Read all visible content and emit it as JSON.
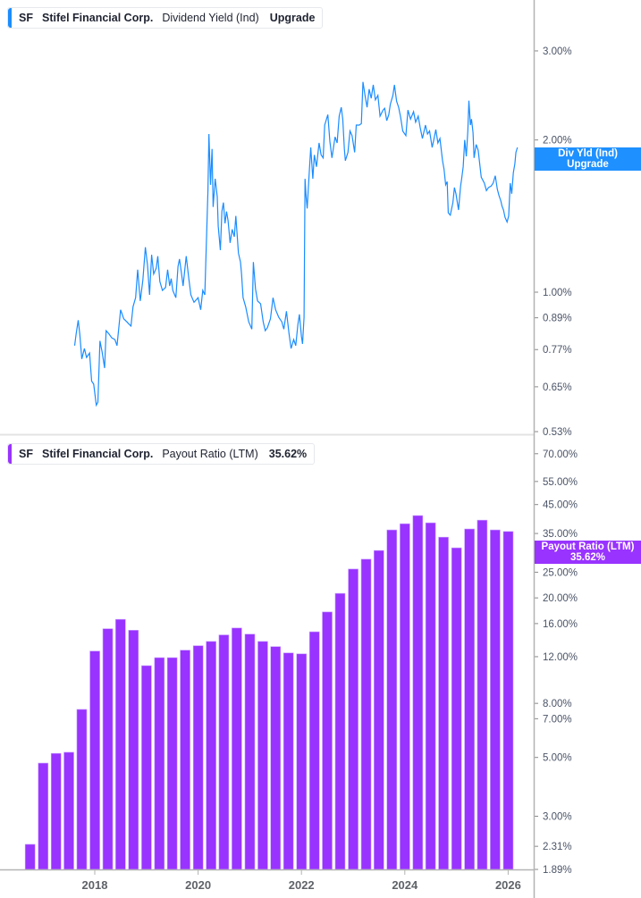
{
  "colors": {
    "yield_line": "#1a8cff",
    "payout_bar": "#9933ff",
    "axis": "#b3b3b3",
    "tick_text": "#4a5366"
  },
  "top_legend": {
    "ticker": "SF",
    "company": "Stifel Financial Corp.",
    "metric": "Dividend Yield (Ind)",
    "value": "Upgrade"
  },
  "top_tag": {
    "line1": "Div Yld (Ind)",
    "line2": "Upgrade"
  },
  "bottom_legend": {
    "ticker": "SF",
    "company": "Stifel Financial Corp.",
    "metric": "Payout Ratio (LTM)",
    "value": "35.62%"
  },
  "bottom_tag": {
    "line1": "Payout Ratio (LTM)",
    "line2": "35.62%"
  },
  "chart_data": [
    {
      "type": "line",
      "series_label": "Dividend Yield (Ind)",
      "yscale": "log",
      "ylim": [
        0.53,
        3.3
      ],
      "yticks": [
        "3.00%",
        "2.00%",
        "1.00%",
        "0.89%",
        "0.77%",
        "0.65%",
        "0.53%"
      ],
      "ytick_values": [
        3.0,
        2.0,
        1.0,
        0.89,
        0.77,
        0.65,
        0.53
      ],
      "x_unit": "year",
      "points": [
        [
          2017.61,
          0.784
        ],
        [
          2017.64,
          0.828
        ],
        [
          2017.68,
          0.88
        ],
        [
          2017.71,
          0.828
        ],
        [
          2017.75,
          0.738
        ],
        [
          2017.8,
          0.774
        ],
        [
          2017.84,
          0.743
        ],
        [
          2017.9,
          0.758
        ],
        [
          2017.94,
          0.667
        ],
        [
          2017.98,
          0.658
        ],
        [
          2018.03,
          0.598
        ],
        [
          2018.06,
          0.606
        ],
        [
          2018.1,
          0.801
        ],
        [
          2018.14,
          0.764
        ],
        [
          2018.19,
          0.708
        ],
        [
          2018.22,
          0.839
        ],
        [
          2018.27,
          0.828
        ],
        [
          2018.33,
          0.812
        ],
        [
          2018.39,
          0.806
        ],
        [
          2018.43,
          0.784
        ],
        [
          2018.5,
          0.923
        ],
        [
          2018.56,
          0.886
        ],
        [
          2018.62,
          0.874
        ],
        [
          2018.67,
          0.863
        ],
        [
          2018.7,
          0.857
        ],
        [
          2018.74,
          0.936
        ],
        [
          2018.79,
          0.975
        ],
        [
          2018.83,
          1.108
        ],
        [
          2018.88,
          0.961
        ],
        [
          2018.93,
          1.057
        ],
        [
          2018.98,
          1.227
        ],
        [
          2019.02,
          1.131
        ],
        [
          2019.06,
          0.988
        ],
        [
          2019.1,
          1.186
        ],
        [
          2019.14,
          1.086
        ],
        [
          2019.19,
          1.116
        ],
        [
          2019.22,
          1.178
        ],
        [
          2019.26,
          1.05
        ],
        [
          2019.31,
          1.008
        ],
        [
          2019.37,
          1.022
        ],
        [
          2019.41,
          1.108
        ],
        [
          2019.45,
          1.029
        ],
        [
          2019.48,
          1.064
        ],
        [
          2019.51,
          1.008
        ],
        [
          2019.57,
          0.975
        ],
        [
          2019.61,
          1.124
        ],
        [
          2019.64,
          1.163
        ],
        [
          2019.68,
          1.086
        ],
        [
          2019.71,
          1.029
        ],
        [
          2019.77,
          1.178
        ],
        [
          2019.82,
          1.064
        ],
        [
          2019.86,
          0.988
        ],
        [
          2019.92,
          0.955
        ],
        [
          2020.0,
          0.975
        ],
        [
          2020.05,
          0.923
        ],
        [
          2020.09,
          1.008
        ],
        [
          2020.13,
          0.988
        ],
        [
          2020.16,
          1.244
        ],
        [
          2020.19,
          1.588
        ],
        [
          2020.21,
          2.055
        ],
        [
          2020.24,
          1.631
        ],
        [
          2020.27,
          1.92
        ],
        [
          2020.29,
          1.474
        ],
        [
          2020.33,
          1.676
        ],
        [
          2020.37,
          1.545
        ],
        [
          2020.39,
          1.35
        ],
        [
          2020.43,
          1.211
        ],
        [
          2020.46,
          1.444
        ],
        [
          2020.49,
          1.504
        ],
        [
          2020.52,
          1.368
        ],
        [
          2020.55,
          1.444
        ],
        [
          2020.58,
          1.386
        ],
        [
          2020.62,
          1.252
        ],
        [
          2020.66,
          1.331
        ],
        [
          2020.7,
          1.287
        ],
        [
          2020.73,
          1.415
        ],
        [
          2020.78,
          1.195
        ],
        [
          2020.82,
          1.147
        ],
        [
          2020.84,
          1.086
        ],
        [
          2020.87,
          0.975
        ],
        [
          2020.92,
          0.936
        ],
        [
          2020.98,
          0.874
        ],
        [
          2021.04,
          0.845
        ],
        [
          2021.07,
          1.147
        ],
        [
          2021.11,
          1.015
        ],
        [
          2021.15,
          0.961
        ],
        [
          2021.21,
          0.948
        ],
        [
          2021.26,
          0.874
        ],
        [
          2021.3,
          0.839
        ],
        [
          2021.34,
          0.851
        ],
        [
          2021.4,
          0.886
        ],
        [
          2021.45,
          0.975
        ],
        [
          2021.5,
          0.923
        ],
        [
          2021.56,
          0.892
        ],
        [
          2021.62,
          0.874
        ],
        [
          2021.66,
          0.845
        ],
        [
          2021.71,
          0.917
        ],
        [
          2021.76,
          0.828
        ],
        [
          2021.8,
          0.774
        ],
        [
          2021.85,
          0.806
        ],
        [
          2021.89,
          0.784
        ],
        [
          2021.93,
          0.863
        ],
        [
          2021.96,
          0.904
        ],
        [
          2022.0,
          0.817
        ],
        [
          2022.02,
          0.79
        ],
        [
          2022.05,
          0.892
        ],
        [
          2022.07,
          1.676
        ],
        [
          2022.09,
          1.545
        ],
        [
          2022.11,
          1.464
        ],
        [
          2022.15,
          1.723
        ],
        [
          2022.18,
          1.933
        ],
        [
          2022.22,
          1.676
        ],
        [
          2022.25,
          1.868
        ],
        [
          2022.29,
          1.77
        ],
        [
          2022.34,
          1.973
        ],
        [
          2022.38,
          1.868
        ],
        [
          2022.42,
          1.843
        ],
        [
          2022.45,
          2.14
        ],
        [
          2022.51,
          2.244
        ],
        [
          2022.55,
          1.986
        ],
        [
          2022.59,
          1.843
        ],
        [
          2022.65,
          2.028
        ],
        [
          2022.69,
          1.973
        ],
        [
          2022.73,
          2.229
        ],
        [
          2022.77,
          2.32
        ],
        [
          2022.8,
          2.199
        ],
        [
          2022.83,
          1.92
        ],
        [
          2022.85,
          1.82
        ],
        [
          2022.9,
          1.89
        ],
        [
          2022.94,
          2.083
        ],
        [
          2022.98,
          2.04
        ],
        [
          2023.03,
          1.89
        ],
        [
          2023.06,
          2.14
        ],
        [
          2023.12,
          2.14
        ],
        [
          2023.16,
          2.155
        ],
        [
          2023.19,
          2.605
        ],
        [
          2023.23,
          2.45
        ],
        [
          2023.27,
          2.32
        ],
        [
          2023.31,
          2.52
        ],
        [
          2023.35,
          2.418
        ],
        [
          2023.39,
          2.57
        ],
        [
          2023.43,
          2.4
        ],
        [
          2023.48,
          2.45
        ],
        [
          2023.52,
          2.229
        ],
        [
          2023.58,
          2.291
        ],
        [
          2023.61,
          2.31
        ],
        [
          2023.65,
          2.184
        ],
        [
          2023.69,
          2.244
        ],
        [
          2023.72,
          2.353
        ],
        [
          2023.77,
          2.45
        ],
        [
          2023.8,
          2.57
        ],
        [
          2023.84,
          2.386
        ],
        [
          2023.88,
          2.32
        ],
        [
          2023.92,
          2.214
        ],
        [
          2023.96,
          2.083
        ],
        [
          2024.02,
          2.04
        ],
        [
          2024.06,
          2.291
        ],
        [
          2024.11,
          2.199
        ],
        [
          2024.17,
          2.275
        ],
        [
          2024.21,
          2.169
        ],
        [
          2024.26,
          2.229
        ],
        [
          2024.3,
          2.111
        ],
        [
          2024.34,
          2.013
        ],
        [
          2024.4,
          2.14
        ],
        [
          2024.44,
          2.055
        ],
        [
          2024.48,
          2.083
        ],
        [
          2024.53,
          1.933
        ],
        [
          2024.56,
          2.0
        ],
        [
          2024.6,
          2.097
        ],
        [
          2024.64,
          1.973
        ],
        [
          2024.68,
          2.013
        ],
        [
          2024.73,
          1.82
        ],
        [
          2024.76,
          1.75
        ],
        [
          2024.79,
          1.631
        ],
        [
          2024.82,
          1.654
        ],
        [
          2024.84,
          1.435
        ],
        [
          2024.88,
          1.42
        ],
        [
          2024.93,
          1.504
        ],
        [
          2024.96,
          1.61
        ],
        [
          2024.99,
          1.566
        ],
        [
          2025.04,
          1.454
        ],
        [
          2025.08,
          1.621
        ],
        [
          2025.1,
          1.676
        ],
        [
          2025.13,
          1.77
        ],
        [
          2025.16,
          2.0
        ],
        [
          2025.19,
          1.856
        ],
        [
          2025.22,
          2.083
        ],
        [
          2025.24,
          2.391
        ],
        [
          2025.27,
          2.14
        ],
        [
          2025.29,
          2.199
        ],
        [
          2025.32,
          2.069
        ],
        [
          2025.34,
          1.843
        ],
        [
          2025.38,
          1.959
        ],
        [
          2025.42,
          1.907
        ],
        [
          2025.45,
          1.794
        ],
        [
          2025.48,
          1.688
        ],
        [
          2025.54,
          1.643
        ],
        [
          2025.58,
          1.588
        ],
        [
          2025.62,
          1.61
        ],
        [
          2025.67,
          1.621
        ],
        [
          2025.71,
          1.643
        ],
        [
          2025.75,
          1.699
        ],
        [
          2025.79,
          1.598
        ],
        [
          2025.82,
          1.556
        ],
        [
          2025.86,
          1.514
        ],
        [
          2025.88,
          1.48
        ],
        [
          2025.91,
          1.454
        ],
        [
          2025.94,
          1.406
        ],
        [
          2025.98,
          1.377
        ],
        [
          2026.01,
          1.415
        ],
        [
          2026.04,
          1.643
        ],
        [
          2026.07,
          1.566
        ],
        [
          2026.1,
          1.723
        ],
        [
          2026.13,
          1.794
        ],
        [
          2026.15,
          1.89
        ],
        [
          2026.18,
          1.933
        ]
      ]
    },
    {
      "type": "bar",
      "series_label": "Payout Ratio (LTM)",
      "yscale": "log",
      "ylim": [
        1.89,
        70
      ],
      "yticks": [
        "70.00%",
        "55.00%",
        "45.00%",
        "35.00%",
        "25.00%",
        "20.00%",
        "16.00%",
        "12.00%",
        "8.00%",
        "7.00%",
        "5.00%",
        "3.00%",
        "2.31%",
        "1.89%"
      ],
      "ytick_values": [
        70,
        55,
        45,
        35,
        25,
        20,
        16,
        12,
        8,
        7,
        5,
        3,
        2.31,
        1.89
      ],
      "xticks": [
        "2018",
        "2020",
        "2022",
        "2024",
        "2026"
      ],
      "categories": [
        "2016-09-30",
        "2016-12-31",
        "2017-03-31",
        "2017-06-30",
        "2017-09-30",
        "2017-12-31",
        "2018-03-31",
        "2018-06-30",
        "2018-09-30",
        "2018-12-31",
        "2019-03-31",
        "2019-06-30",
        "2019-09-30",
        "2019-12-31",
        "2020-03-31",
        "2020-06-30",
        "2020-09-30",
        "2020-12-31",
        "2021-03-31",
        "2021-06-30",
        "2021-09-30",
        "2021-12-31",
        "2022-03-31",
        "2022-06-30",
        "2022-09-30",
        "2022-12-31",
        "2023-03-31",
        "2023-06-30",
        "2023-09-30",
        "2023-12-31",
        "2024-03-31",
        "2024-06-30",
        "2024-09-30",
        "2024-12-31",
        "2025-03-31",
        "2025-06-30",
        "2025-09-30",
        "2025-12-31"
      ],
      "values": [
        2.35,
        4.76,
        5.18,
        5.23,
        7.59,
        12.6,
        15.3,
        16.6,
        15.1,
        11.1,
        11.9,
        11.9,
        12.7,
        13.2,
        13.7,
        14.5,
        15.4,
        14.6,
        13.7,
        13.1,
        12.4,
        12.3,
        14.9,
        17.7,
        20.8,
        25.7,
        28.0,
        30.2,
        36.1,
        38.1,
        40.9,
        38.4,
        33.9,
        30.9,
        36.4,
        39.3,
        36.1,
        35.62
      ]
    }
  ]
}
